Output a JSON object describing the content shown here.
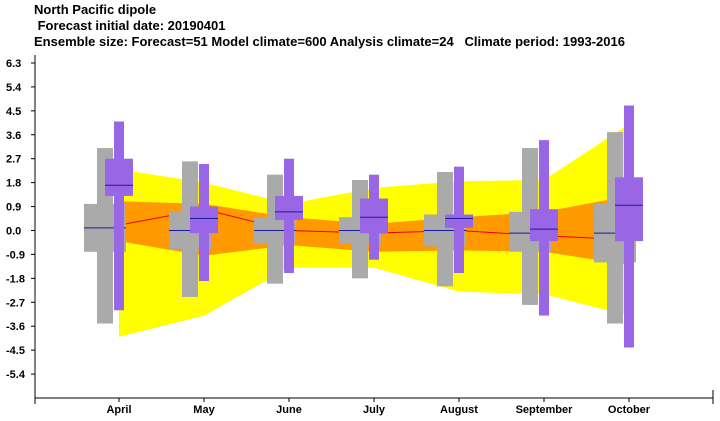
{
  "header": {
    "title": "North Pacific dipole",
    "subtitle": " Forecast initial date: 20190401",
    "info": "Ensemble size: Forecast=51 Model climate=600 Analysis climate=24   Climate period: 1993-2016"
  },
  "chart_data": {
    "type": "box",
    "categories": [
      "April",
      "May",
      "June",
      "July",
      "August",
      "September",
      "October"
    ],
    "y_ticks": [
      "6.3",
      "5.4",
      "4.5",
      "3.6",
      "2.7",
      "1.8",
      "0.9",
      "0.0",
      "-0.9",
      "-1.8",
      "-2.7",
      "-3.6",
      "-4.5",
      "-5.4"
    ],
    "ylim": [
      -6.3,
      6.6
    ],
    "colors": {
      "forecast": "#9966e6",
      "model_climate": "#aaaaaa",
      "analysis_outer": "#ffff00",
      "analysis_inner": "#ff9900",
      "analysis_median": "#e60000",
      "median_line": "#1a1aa0"
    },
    "analysis_climate": {
      "outer_upper": [
        2.3,
        1.8,
        1.0,
        1.6,
        1.85,
        1.9,
        4.0
      ],
      "outer_lower": [
        -4.0,
        -3.2,
        -1.4,
        -1.4,
        -2.3,
        -2.4,
        -3.2
      ],
      "inner_upper": [
        1.1,
        1.0,
        0.5,
        0.25,
        0.5,
        0.7,
        1.3
      ],
      "inner_lower": [
        -0.4,
        -0.95,
        -0.55,
        -0.8,
        -0.75,
        -0.8,
        -1.3
      ],
      "median": [
        0.2,
        0.8,
        0.0,
        -0.1,
        0.0,
        -0.2,
        -0.35
      ]
    },
    "model_climate": {
      "whisker_low": [
        -3.5,
        -2.5,
        -2.0,
        -1.8,
        -2.1,
        -2.8,
        -3.5
      ],
      "box_low": [
        -0.8,
        -0.7,
        -0.5,
        -0.5,
        -0.6,
        -0.8,
        -1.2
      ],
      "median": [
        0.1,
        0.0,
        0.0,
        0.0,
        0.0,
        -0.1,
        -0.1
      ],
      "box_high": [
        1.0,
        0.7,
        0.5,
        0.5,
        0.6,
        0.7,
        1.0
      ],
      "whisker_high": [
        3.1,
        2.6,
        2.1,
        1.9,
        2.2,
        3.1,
        3.7
      ]
    },
    "forecast": {
      "whisker_low": [
        -3.0,
        -1.9,
        -1.6,
        -1.1,
        -1.6,
        -3.2,
        -4.4
      ],
      "box_low": [
        1.3,
        -0.1,
        0.4,
        -0.1,
        0.1,
        -0.4,
        -0.4
      ],
      "median": [
        1.7,
        0.45,
        0.7,
        0.5,
        0.45,
        0.05,
        0.95
      ],
      "box_high": [
        2.7,
        0.9,
        1.3,
        1.2,
        0.6,
        0.8,
        2.0
      ],
      "whisker_high": [
        4.1,
        2.5,
        2.7,
        2.1,
        2.4,
        3.4,
        4.7
      ]
    }
  }
}
